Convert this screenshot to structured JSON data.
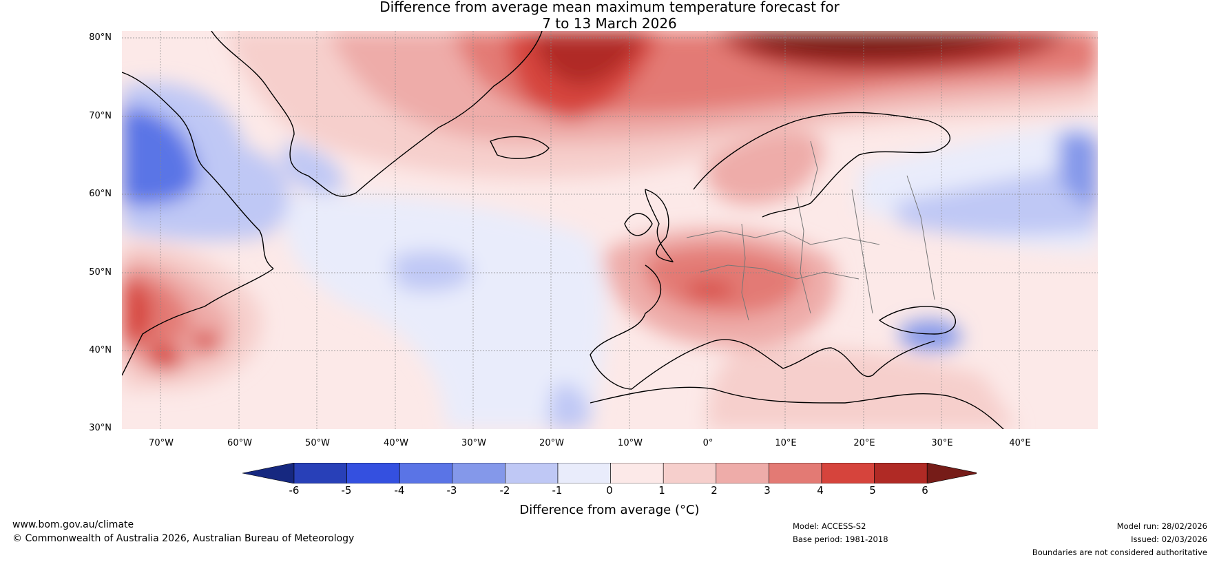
{
  "title": {
    "line1": "Difference from average mean maximum temperature forecast for",
    "line2": "7 to 13 March 2026"
  },
  "map": {
    "latitudes": [
      "80°N",
      "70°N",
      "60°N",
      "50°N",
      "40°N",
      "30°N"
    ],
    "longitudes": [
      "70°W",
      "60°W",
      "50°W",
      "40°W",
      "30°W",
      "20°W",
      "10°W",
      "0°",
      "10°E",
      "20°E",
      "30°E",
      "40°E"
    ],
    "regions": [
      "Greenland",
      "Iceland",
      "Western Europe",
      "Central Europe",
      "Scandinavia",
      "Eastern Canada",
      "North Atlantic",
      "Russia"
    ]
  },
  "colorbar": {
    "ticks": [
      "-6",
      "-5",
      "-4",
      "-3",
      "-2",
      "-1",
      "0",
      "1",
      "2",
      "3",
      "4",
      "5",
      "6"
    ],
    "colors": [
      "#162880",
      "#2840b8",
      "#3450e0",
      "#5a74e6",
      "#8498ea",
      "#bfc8f5",
      "#e9ecfb",
      "#fce9e8",
      "#f6cfcc",
      "#eeaca9",
      "#e37a74",
      "#d6443c",
      "#b02a25",
      "#761c18"
    ],
    "label": "Difference from average (°C)"
  },
  "footer": {
    "url": "www.bom.gov.au/climate",
    "copyright": "© Commonwealth of Australia 2026, Australian Bureau of Meteorology",
    "model": "Model: ACCESS-S2",
    "base_period": "Base period: 1981-2018",
    "model_run": "Model run: 28/02/2026",
    "issued": "Issued: 02/03/2026",
    "disclaimer": "Boundaries are not considered authoritative"
  }
}
